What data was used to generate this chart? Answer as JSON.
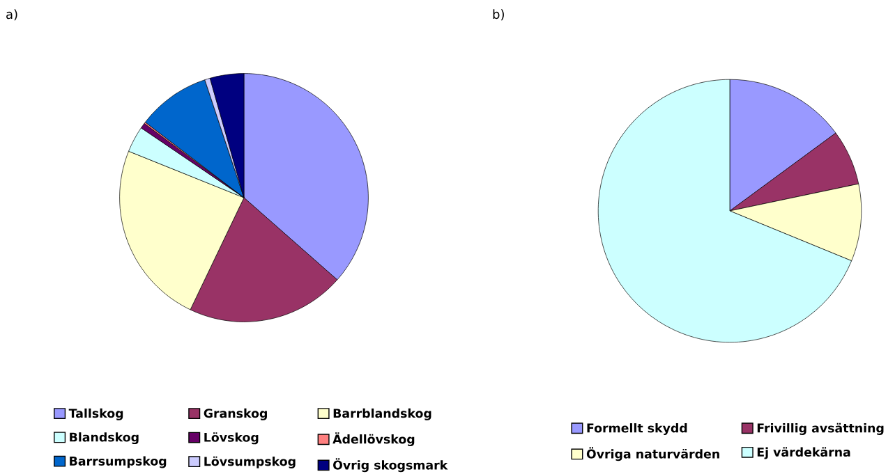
{
  "chart_data": [
    {
      "type": "pie",
      "title": "a)",
      "legend": "bottom",
      "categories": [
        "Tallskog",
        "Granskog",
        "Barrblandskog",
        "Blandskog",
        "Lövskog",
        "Ädellövskog",
        "Barrsumpskog",
        "Lövsumpskog",
        "Övrig skogsmark"
      ],
      "values": [
        36.5,
        20.6,
        24.0,
        3.4,
        0.7,
        0.2,
        9.5,
        0.7,
        4.4
      ],
      "colors": [
        "#9999ff",
        "#993366",
        "#ffffcc",
        "#ccffff",
        "#660066",
        "#ff8080",
        "#0066cc",
        "#ccccff",
        "#000080"
      ]
    },
    {
      "type": "pie",
      "title": "b)",
      "legend": "bottom",
      "categories": [
        "Formellt skydd",
        "Frivillig avsättning",
        "Övriga naturvärden",
        "Ej värdekärna"
      ],
      "values": [
        14.9,
        6.8,
        9.5,
        68.8
      ],
      "colors": [
        "#9999ff",
        "#993366",
        "#ffffcc",
        "#ccffff"
      ]
    }
  ]
}
